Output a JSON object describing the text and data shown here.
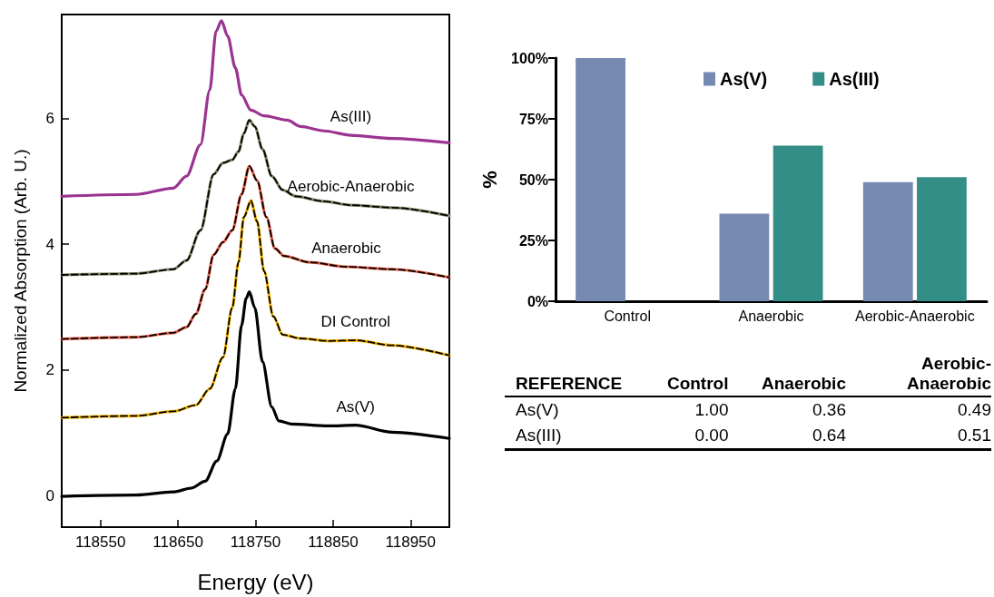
{
  "chart_data": [
    {
      "type": "line",
      "xlabel": "Energy (eV)",
      "ylabel": "Normalized Absorption (Arb. U.)",
      "xlim": [
        118500,
        119000
      ],
      "ylim": [
        -0.5,
        7.65
      ],
      "xticks": [
        118550,
        118650,
        118750,
        118850,
        118950
      ],
      "yticks": [
        0,
        2,
        4,
        6
      ],
      "tick_labels": "xy",
      "grid": false,
      "legend": false,
      "marker": "none",
      "line_style": "solid",
      "series": [
        {
          "name": "As(III)",
          "color": "#9b3390",
          "x": [
            118500,
            118596,
            118644,
            118661,
            118679,
            118691,
            118699,
            118706,
            118714,
            118724,
            118732,
            118744,
            118761,
            118791,
            118808,
            118838,
            118873,
            118926,
            119000
          ],
          "values": [
            4.76,
            4.79,
            4.89,
            5.08,
            5.58,
            6.45,
            7.38,
            7.55,
            7.31,
            6.8,
            6.37,
            6.13,
            6.04,
            5.97,
            5.87,
            5.8,
            5.73,
            5.68,
            5.61
          ]
        },
        {
          "name": "Aerobic-Anaerobic",
          "color": "#8c8b6c",
          "x": [
            118500,
            118596,
            118644,
            118661,
            118679,
            118696,
            118708,
            118720,
            118728,
            118735,
            118742,
            118749,
            118759,
            118771,
            118785,
            118802,
            118838,
            118873,
            118926,
            119000
          ],
          "values": [
            3.51,
            3.53,
            3.6,
            3.74,
            4.22,
            5.11,
            5.29,
            5.34,
            5.47,
            5.76,
            5.97,
            5.87,
            5.51,
            5.08,
            4.86,
            4.76,
            4.68,
            4.62,
            4.58,
            4.45
          ]
        },
        {
          "name": "Anaerobic",
          "color": "#ee6650",
          "x": [
            118500,
            118596,
            118644,
            118661,
            118673,
            118685,
            118696,
            118708,
            118720,
            118732,
            118742,
            118752,
            118764,
            118775,
            118787,
            118820,
            118867,
            118926,
            119000
          ],
          "values": [
            2.49,
            2.52,
            2.59,
            2.68,
            2.89,
            3.28,
            3.83,
            4.03,
            4.22,
            4.79,
            5.24,
            5.01,
            4.43,
            3.93,
            3.81,
            3.71,
            3.64,
            3.6,
            3.47
          ]
        },
        {
          "name": "DI Control",
          "color": "#f5b400",
          "x": [
            118500,
            118596,
            118644,
            118673,
            118691,
            118708,
            118720,
            118728,
            118735,
            118744,
            118752,
            118761,
            118773,
            118785,
            118808,
            118844,
            118879,
            118926,
            119000
          ],
          "values": [
            1.24,
            1.27,
            1.34,
            1.44,
            1.7,
            2.2,
            2.99,
            3.71,
            4.43,
            4.69,
            4.36,
            3.57,
            2.85,
            2.56,
            2.5,
            2.46,
            2.47,
            2.39,
            2.23
          ]
        },
        {
          "name": "As(V)",
          "color": "#000000",
          "x": [
            118500,
            118596,
            118644,
            118667,
            118685,
            118700,
            118714,
            118724,
            118732,
            118738,
            118742,
            118749,
            118759,
            118771,
            118780,
            118796,
            118844,
            118879,
            118926,
            119000
          ],
          "values": [
            -0.01,
            0.01,
            0.06,
            0.12,
            0.23,
            0.55,
            0.98,
            1.7,
            2.71,
            3.14,
            3.24,
            2.99,
            2.13,
            1.41,
            1.19,
            1.14,
            1.11,
            1.12,
            1.01,
            0.91
          ]
        },
        {
          "color": "#000000",
          "line_style": "dashed",
          "x": [
            118500,
            118596,
            118644,
            118661,
            118679,
            118696,
            118708,
            118720,
            118728,
            118735,
            118742,
            118749,
            118759,
            118771,
            118785,
            118802,
            118838,
            118873,
            118926,
            119000
          ],
          "values": [
            3.51,
            3.53,
            3.6,
            3.74,
            4.22,
            5.11,
            5.29,
            5.34,
            5.47,
            5.76,
            5.97,
            5.87,
            5.51,
            5.08,
            4.86,
            4.76,
            4.68,
            4.62,
            4.58,
            4.45
          ]
        },
        {
          "color": "#000000",
          "line_style": "dashed",
          "x": [
            118500,
            118596,
            118644,
            118661,
            118673,
            118685,
            118696,
            118708,
            118720,
            118732,
            118742,
            118752,
            118764,
            118775,
            118787,
            118820,
            118867,
            118926,
            119000
          ],
          "values": [
            2.49,
            2.52,
            2.59,
            2.68,
            2.89,
            3.28,
            3.83,
            4.03,
            4.22,
            4.79,
            5.24,
            5.01,
            4.43,
            3.93,
            3.81,
            3.71,
            3.64,
            3.6,
            3.47
          ]
        },
        {
          "color": "#000000",
          "line_style": "dashed",
          "x": [
            118500,
            118596,
            118644,
            118673,
            118691,
            118708,
            118720,
            118728,
            118735,
            118744,
            118752,
            118761,
            118773,
            118785,
            118808,
            118844,
            118879,
            118926,
            119000
          ],
          "values": [
            1.24,
            1.27,
            1.34,
            1.44,
            1.7,
            2.2,
            2.99,
            3.71,
            4.43,
            4.69,
            4.36,
            3.57,
            2.85,
            2.56,
            2.5,
            2.46,
            2.47,
            2.39,
            2.23
          ]
        }
      ]
    },
    {
      "type": "bar",
      "ylabel": "%",
      "categories": [
        "Control",
        "Anaerobic",
        "Aerobic-Anaerobic"
      ],
      "ylim": [
        0,
        100
      ],
      "yticks": [
        {
          "value": 0,
          "label": "0%"
        },
        {
          "value": 25,
          "label": "25%"
        },
        {
          "value": 50,
          "label": "50%"
        },
        {
          "value": 75,
          "label": "75%"
        },
        {
          "value": 100,
          "label": "100%"
        }
      ],
      "grid": false,
      "legend": "top right",
      "series": [
        {
          "name": "As(V)",
          "color": "#7689b1",
          "values": [
            100,
            36,
            49
          ]
        },
        {
          "name": "As(III)",
          "color": "#338e88",
          "values": [
            0,
            64,
            51
          ]
        }
      ]
    },
    {
      "type": "other",
      "ylabel": "REFERENCE",
      "categories": [
        "Control",
        "Anaerobic",
        "Aerobic-Anaerobic"
      ],
      "y_categories": [
        "As(V)",
        "As(III)"
      ],
      "cells": [
        [
          "1.00",
          "0.36",
          "0.49"
        ],
        [
          "0.00",
          "0.64",
          "0.51"
        ]
      ]
    }
  ]
}
